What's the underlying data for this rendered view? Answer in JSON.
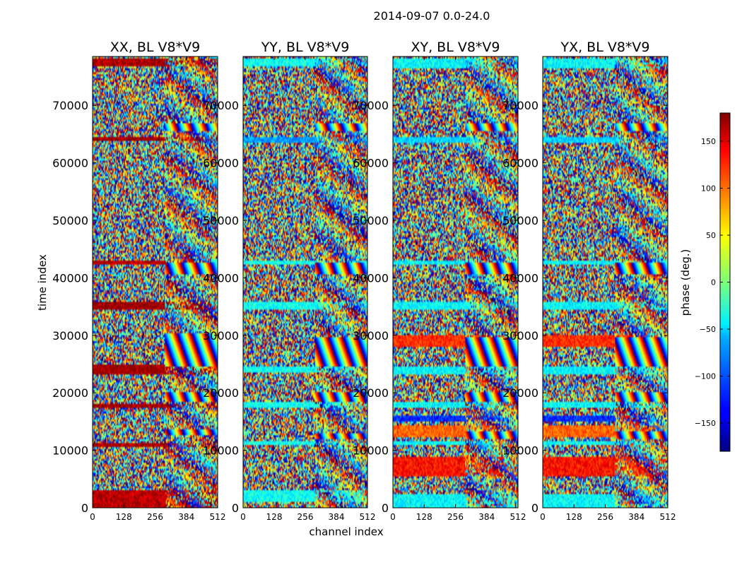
{
  "figure_title": "2014-09-07 0.0-24.0",
  "chart_data": [
    {
      "type": "heatmap",
      "title": "XX, BL V8*V9",
      "xlabel": "channel index",
      "ylabel": "time index",
      "xlim": [
        0,
        512
      ],
      "ylim": [
        0,
        78500
      ],
      "xticks": [
        0,
        128,
        256,
        384,
        512
      ],
      "yticks": [
        0,
        10000,
        20000,
        30000,
        40000,
        50000,
        60000,
        70000
      ],
      "value_label": "phase (deg.)",
      "value_range": [
        -180,
        180
      ],
      "bias_bands": [
        [
          0,
          3000,
          160
        ],
        [
          10600,
          11300,
          165
        ],
        [
          17300,
          18200,
          170
        ],
        [
          23300,
          24800,
          170
        ],
        [
          34600,
          36000,
          170
        ],
        [
          42300,
          43000,
          160
        ],
        [
          63800,
          64600,
          170
        ],
        [
          76700,
          78000,
          165
        ]
      ],
      "fringe_bands": [
        [
          12500,
          13800
        ],
        [
          18600,
          20000
        ],
        [
          24600,
          30500
        ],
        [
          40500,
          42500
        ],
        [
          65400,
          66800
        ]
      ]
    },
    {
      "type": "heatmap",
      "title": "YY, BL V8*V9",
      "xlabel": "channel index",
      "ylabel": "time index",
      "xlim": [
        0,
        512
      ],
      "ylim": [
        0,
        78500
      ],
      "xticks": [
        0,
        128,
        256,
        384,
        512
      ],
      "yticks": [
        0,
        10000,
        20000,
        30000,
        40000,
        50000,
        60000,
        70000
      ],
      "value_label": "phase (deg.)",
      "value_range": [
        -180,
        180
      ],
      "bias_bands": [
        [
          1000,
          3000,
          -40
        ],
        [
          11000,
          11500,
          -40
        ],
        [
          17500,
          18300,
          -40
        ],
        [
          23500,
          24500,
          -40
        ],
        [
          34500,
          36000,
          -40
        ],
        [
          42300,
          43000,
          -40
        ],
        [
          63500,
          64500,
          -80
        ],
        [
          76800,
          78000,
          -40
        ]
      ],
      "fringe_bands": [
        [
          12000,
          13000
        ],
        [
          18600,
          20000
        ],
        [
          24500,
          29800
        ],
        [
          40500,
          42500
        ],
        [
          65400,
          66800
        ]
      ]
    },
    {
      "type": "heatmap",
      "title": "XY, BL V8*V9",
      "xlabel": "channel index",
      "ylabel": "time index",
      "xlim": [
        0,
        512
      ],
      "ylim": [
        0,
        78500
      ],
      "xticks": [
        0,
        128,
        256,
        384,
        512
      ],
      "yticks": [
        0,
        10000,
        20000,
        30000,
        40000,
        50000,
        60000,
        70000
      ],
      "value_label": "phase (deg.)",
      "value_range": [
        -180,
        180
      ],
      "bias_bands": [
        [
          0,
          2500,
          -45
        ],
        [
          5500,
          9000,
          130
        ],
        [
          11000,
          11500,
          -45
        ],
        [
          12300,
          14200,
          100
        ],
        [
          15000,
          16000,
          -120
        ],
        [
          17400,
          18300,
          -45
        ],
        [
          23300,
          24600,
          -45
        ],
        [
          28000,
          30000,
          120
        ],
        [
          34500,
          36000,
          -45
        ],
        [
          42300,
          43000,
          -45
        ],
        [
          63500,
          64500,
          -60
        ],
        [
          76500,
          78000,
          -45
        ]
      ],
      "fringe_bands": [
        [
          12000,
          13200
        ],
        [
          18600,
          20000
        ],
        [
          24500,
          29800
        ],
        [
          40500,
          42500
        ],
        [
          65400,
          66800
        ]
      ]
    },
    {
      "type": "heatmap",
      "title": "YX, BL V8*V9",
      "xlabel": "channel index",
      "ylabel": "time index",
      "xlim": [
        0,
        512
      ],
      "ylim": [
        0,
        78500
      ],
      "xticks": [
        0,
        128,
        256,
        384,
        512
      ],
      "yticks": [
        0,
        10000,
        20000,
        30000,
        40000,
        50000,
        60000,
        70000
      ],
      "value_label": "phase (deg.)",
      "value_range": [
        -180,
        180
      ],
      "bias_bands": [
        [
          0,
          2500,
          -45
        ],
        [
          5500,
          9000,
          130
        ],
        [
          11000,
          11500,
          -45
        ],
        [
          12300,
          14200,
          100
        ],
        [
          15000,
          16000,
          -120
        ],
        [
          17400,
          18300,
          -45
        ],
        [
          23300,
          24600,
          -45
        ],
        [
          28000,
          30000,
          120
        ],
        [
          34500,
          36000,
          -45
        ],
        [
          42300,
          43000,
          -45
        ],
        [
          63500,
          64500,
          -60
        ],
        [
          76500,
          78000,
          -45
        ]
      ],
      "fringe_bands": [
        [
          12000,
          13200
        ],
        [
          18600,
          20000
        ],
        [
          24500,
          29800
        ],
        [
          40500,
          42500
        ],
        [
          65400,
          66800
        ]
      ]
    }
  ],
  "colorbar": {
    "label": "phase (deg.)",
    "range": [
      -180,
      180
    ],
    "ticks": [
      150,
      100,
      50,
      0,
      -50,
      -100,
      -150
    ],
    "tick_labels": [
      "150",
      "100",
      "50",
      "0",
      "−50",
      "−100",
      "−150"
    ],
    "colormap": "jet"
  }
}
